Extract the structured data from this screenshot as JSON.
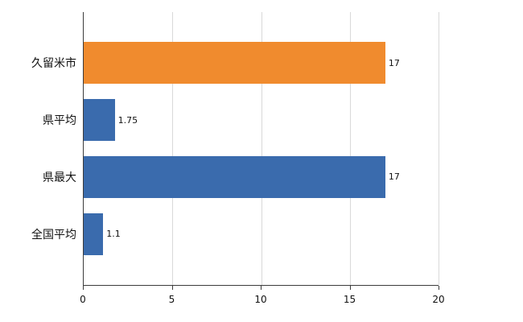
{
  "chart_data": {
    "type": "bar",
    "orientation": "horizontal",
    "title": "",
    "xlabel": "",
    "ylabel": "",
    "categories": [
      "久留米市",
      "県平均",
      "県最大",
      "全国平均"
    ],
    "values": [
      17,
      1.75,
      17,
      1.1
    ],
    "value_labels": [
      "17",
      "1.75",
      "17",
      "1.1"
    ],
    "bar_colors": [
      "#f08b2e",
      "#3a6bad",
      "#3a6bad",
      "#3a6bad"
    ],
    "xlim": [
      0,
      20
    ],
    "xticks": [
      0,
      5,
      10,
      15,
      20
    ],
    "grid": true,
    "legend": "none",
    "background": "#ffffff",
    "axis_color": "#3c3c3c",
    "gridline_color": "#d9d9d9"
  }
}
